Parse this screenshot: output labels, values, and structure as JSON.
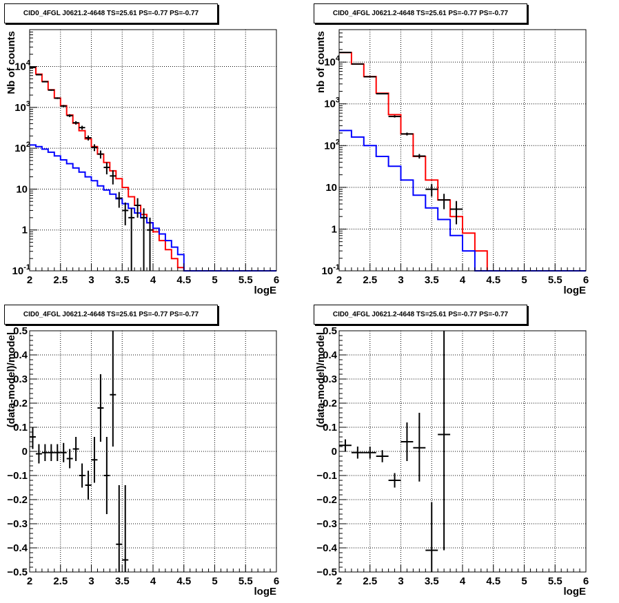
{
  "chart_data": [
    {
      "type": "histogram",
      "title": "CID0_4FGL J0621.2-4648 TS=25.61 PS=-0.77 PS=-0.77",
      "xlabel": "logE",
      "ylabel": "Nb of counts",
      "xlim": [
        2,
        6
      ],
      "ylim": [
        0.1,
        80000
      ],
      "yscale": "log",
      "grid": true,
      "xticks": [
        "2",
        "2.5",
        "3",
        "3.5",
        "4",
        "4.5",
        "5",
        "5.5",
        "6"
      ],
      "yticks": [
        {
          "v": 0.1,
          "mant": "10",
          "exp": "-1"
        },
        {
          "v": 1,
          "mant": "1",
          "exp": ""
        },
        {
          "v": 10,
          "mant": "10",
          "exp": ""
        },
        {
          "v": 100,
          "mant": "10",
          "exp": "2"
        },
        {
          "v": 1000,
          "mant": "10",
          "exp": "3"
        },
        {
          "v": 10000,
          "mant": "10",
          "exp": "4"
        }
      ],
      "bin_edges": [
        2.0,
        2.1,
        2.2,
        2.3,
        2.4,
        2.5,
        2.6,
        2.7,
        2.8,
        2.9,
        3.0,
        3.1,
        3.2,
        3.3,
        3.4,
        3.5,
        3.6,
        3.7,
        3.8,
        3.9,
        4.0,
        4.1,
        4.2,
        4.3,
        4.4,
        4.5,
        4.6,
        4.7,
        4.8,
        4.9,
        5.0,
        5.1,
        5.2,
        5.3,
        5.4,
        5.5,
        5.6,
        5.7,
        5.8,
        5.9,
        6.0
      ],
      "series": [
        {
          "color": "#ff0000",
          "values": [
            9600,
            6500,
            4300,
            2700,
            1700,
            1100,
            650,
            410,
            270,
            170,
            110,
            72,
            45,
            28,
            18,
            11,
            6.5,
            4.0,
            2.4,
            1.5,
            0.9,
            0.55,
            0.33,
            0.2,
            0.12,
            0.1,
            0.1,
            0.1,
            0.1,
            0.1,
            0.1,
            0.1,
            0.1,
            0.1,
            0.1,
            0.1,
            0.1,
            0.1,
            0.1,
            0.1
          ]
        },
        {
          "color": "#0000ff",
          "values": [
            120,
            110,
            95,
            80,
            65,
            52,
            42,
            33,
            26,
            20,
            16,
            12,
            9.5,
            7.5,
            5.8,
            4.4,
            3.4,
            2.6,
            2.0,
            1.5,
            1.1,
            0.8,
            0.55,
            0.38,
            0.25,
            0.1,
            0.1,
            0.1,
            0.1,
            0.1,
            0.1,
            0.1,
            0.1,
            0.1,
            0.1,
            0.1,
            0.1,
            0.1,
            0.1,
            0.1
          ]
        }
      ],
      "points": [
        {
          "x": 2.05,
          "y": 9500,
          "lo": 9300,
          "hi": 9700
        },
        {
          "x": 2.15,
          "y": 6300,
          "lo": 6150,
          "hi": 6450
        },
        {
          "x": 2.25,
          "y": 4250,
          "lo": 4120,
          "hi": 4380
        },
        {
          "x": 2.35,
          "y": 2650,
          "lo": 2550,
          "hi": 2750
        },
        {
          "x": 2.45,
          "y": 1680,
          "lo": 1600,
          "hi": 1760
        },
        {
          "x": 2.55,
          "y": 1080,
          "lo": 1015,
          "hi": 1145
        },
        {
          "x": 2.65,
          "y": 630,
          "lo": 580,
          "hi": 680
        },
        {
          "x": 2.75,
          "y": 420,
          "lo": 380,
          "hi": 460
        },
        {
          "x": 2.85,
          "y": 320,
          "lo": 285,
          "hi": 355
        },
        {
          "x": 2.95,
          "y": 180,
          "lo": 155,
          "hi": 205
        },
        {
          "x": 3.05,
          "y": 105,
          "lo": 85,
          "hi": 125
        },
        {
          "x": 3.15,
          "y": 72,
          "lo": 56,
          "hi": 88
        },
        {
          "x": 3.25,
          "y": 34,
          "lo": 23,
          "hi": 45
        },
        {
          "x": 3.35,
          "y": 21,
          "lo": 13,
          "hi": 29
        },
        {
          "x": 3.45,
          "y": 6,
          "lo": 3.5,
          "hi": 8.5
        },
        {
          "x": 3.55,
          "y": 3,
          "lo": 1.3,
          "hi": 4.7
        },
        {
          "x": 3.65,
          "y": 2,
          "lo": 0.1,
          "hi": 3.4
        },
        {
          "x": 3.75,
          "y": 4,
          "lo": 2,
          "hi": 6
        },
        {
          "x": 3.85,
          "y": 2,
          "lo": 0.1,
          "hi": 3.4
        },
        {
          "x": 3.95,
          "y": 1,
          "lo": 0.1,
          "hi": 2
        }
      ]
    },
    {
      "type": "histogram",
      "title": "CID0_4FGL J0621.2-4648 TS=25.61 PS=-0.77 PS=-0.77",
      "xlabel": "logE",
      "ylabel": "nb of counts",
      "xlim": [
        2,
        6
      ],
      "ylim": [
        0.1,
        60000
      ],
      "yscale": "log",
      "grid": true,
      "xticks": [
        "2",
        "2.5",
        "3",
        "3.5",
        "4",
        "4.5",
        "5",
        "5.5",
        "6"
      ],
      "yticks": [
        {
          "v": 0.1,
          "mant": "10",
          "exp": "-1"
        },
        {
          "v": 1,
          "mant": "1",
          "exp": ""
        },
        {
          "v": 10,
          "mant": "10",
          "exp": ""
        },
        {
          "v": 100,
          "mant": "10",
          "exp": "2"
        },
        {
          "v": 1000,
          "mant": "10",
          "exp": "3"
        },
        {
          "v": 10000,
          "mant": "10",
          "exp": "4"
        }
      ],
      "bin_edges": [
        2.0,
        2.2,
        2.4,
        2.6,
        2.8,
        3.0,
        3.2,
        3.4,
        3.6,
        3.8,
        4.0,
        4.2,
        4.4,
        4.6,
        4.8,
        5.0,
        5.2,
        5.4,
        5.6,
        5.8,
        6.0
      ],
      "series": [
        {
          "color": "#ff0000",
          "values": [
            17000,
            9000,
            4500,
            1800,
            550,
            190,
            55,
            15,
            5,
            2,
            0.8,
            0.3,
            0.1,
            0.1,
            0.1,
            0.1,
            0.1,
            0.1,
            0.1,
            0.1
          ]
        },
        {
          "color": "#0000ff",
          "values": [
            230,
            160,
            100,
            55,
            32,
            15,
            6.5,
            3.2,
            1.7,
            0.7,
            0.3,
            0.1,
            0.1,
            0.1,
            0.1,
            0.1,
            0.1,
            0.1,
            0.1,
            0.1
          ]
        }
      ],
      "points": [
        {
          "x": 2.1,
          "y": 17000,
          "lo": 16800,
          "hi": 17200
        },
        {
          "x": 2.3,
          "y": 9000,
          "lo": 8850,
          "hi": 9150
        },
        {
          "x": 2.5,
          "y": 4450,
          "lo": 4350,
          "hi": 4550
        },
        {
          "x": 2.7,
          "y": 1750,
          "lo": 1690,
          "hi": 1810
        },
        {
          "x": 2.9,
          "y": 500,
          "lo": 470,
          "hi": 530
        },
        {
          "x": 3.1,
          "y": 190,
          "lo": 175,
          "hi": 205
        },
        {
          "x": 3.3,
          "y": 56,
          "lo": 49,
          "hi": 63
        },
        {
          "x": 3.5,
          "y": 9,
          "lo": 6,
          "hi": 12
        },
        {
          "x": 3.7,
          "y": 5,
          "lo": 3,
          "hi": 7
        },
        {
          "x": 3.9,
          "y": 3,
          "lo": 1.3,
          "hi": 4.7
        }
      ]
    },
    {
      "type": "scatter",
      "title": "CID0_4FGL J0621.2-4648 TS=25.61 PS=-0.77 PS=-0.77",
      "xlabel": "logE",
      "ylabel": "(data-model)/model",
      "xlim": [
        2,
        6
      ],
      "ylim": [
        -0.5,
        0.5
      ],
      "grid": true,
      "xticks": [
        "2",
        "2.5",
        "3",
        "3.5",
        "4",
        "4.5",
        "5",
        "5.5",
        "6"
      ],
      "yticks": [
        "-0.5",
        "-0.4",
        "-0.3",
        "-0.2",
        "-0.1",
        "0",
        "0.1",
        "0.2",
        "0.3",
        "0.4",
        "0.5"
      ],
      "points": [
        {
          "x": 2.05,
          "y": 0.06,
          "lo": 0.01,
          "hi": 0.1
        },
        {
          "x": 2.15,
          "y": -0.01,
          "lo": -0.05,
          "hi": 0.03
        },
        {
          "x": 2.25,
          "y": -0.005,
          "lo": -0.04,
          "hi": 0.03
        },
        {
          "x": 2.35,
          "y": -0.005,
          "lo": -0.04,
          "hi": 0.03
        },
        {
          "x": 2.45,
          "y": -0.005,
          "lo": -0.04,
          "hi": 0.03
        },
        {
          "x": 2.55,
          "y": -0.005,
          "lo": -0.045,
          "hi": 0.035
        },
        {
          "x": 2.65,
          "y": -0.03,
          "lo": -0.07,
          "hi": 0.01
        },
        {
          "x": 2.75,
          "y": 0.01,
          "lo": -0.04,
          "hi": 0.06
        },
        {
          "x": 2.85,
          "y": -0.1,
          "lo": -0.15,
          "hi": -0.05
        },
        {
          "x": 2.95,
          "y": -0.14,
          "lo": -0.2,
          "hi": -0.08
        },
        {
          "x": 3.05,
          "y": -0.035,
          "lo": -0.13,
          "hi": 0.06
        },
        {
          "x": 3.15,
          "y": 0.18,
          "lo": 0.04,
          "hi": 0.32
        },
        {
          "x": 3.25,
          "y": -0.1,
          "lo": -0.26,
          "hi": 0.06
        },
        {
          "x": 3.35,
          "y": 0.235,
          "lo": 0.02,
          "hi": 0.5
        },
        {
          "x": 3.45,
          "y": -0.385,
          "lo": -0.5,
          "hi": -0.14
        },
        {
          "x": 3.55,
          "y": -0.45,
          "lo": -0.5,
          "hi": -0.14
        }
      ]
    },
    {
      "type": "scatter",
      "title": "CID0_4FGL J0621.2-4648 TS=25.61 PS=-0.77 PS=-0.77",
      "xlabel": "logE",
      "ylabel": "(data-model)/model",
      "xlim": [
        2,
        6
      ],
      "ylim": [
        -0.5,
        0.5
      ],
      "grid": true,
      "xticks": [
        "2",
        "2.5",
        "3",
        "3.5",
        "4",
        "4.5",
        "5",
        "5.5",
        "6"
      ],
      "yticks": [
        "-0.5",
        "-0.4",
        "-0.3",
        "-0.2",
        "-0.1",
        "0",
        "0.1",
        "0.2",
        "0.3",
        "0.4",
        "0.5"
      ],
      "points": [
        {
          "x": 2.1,
          "y": 0.025,
          "lo": 0.0,
          "hi": 0.05
        },
        {
          "x": 2.3,
          "y": -0.005,
          "lo": -0.03,
          "hi": 0.02
        },
        {
          "x": 2.5,
          "y": -0.005,
          "lo": -0.03,
          "hi": 0.02
        },
        {
          "x": 2.7,
          "y": -0.02,
          "lo": -0.045,
          "hi": 0.005
        },
        {
          "x": 2.9,
          "y": -0.12,
          "lo": -0.15,
          "hi": -0.09
        },
        {
          "x": 3.1,
          "y": 0.04,
          "lo": -0.04,
          "hi": 0.12
        },
        {
          "x": 3.3,
          "y": 0.015,
          "lo": -0.125,
          "hi": 0.16
        },
        {
          "x": 3.5,
          "y": -0.41,
          "lo": -0.5,
          "hi": -0.21
        },
        {
          "x": 3.7,
          "y": 0.07,
          "lo": -0.41,
          "hi": 0.5
        }
      ]
    }
  ]
}
